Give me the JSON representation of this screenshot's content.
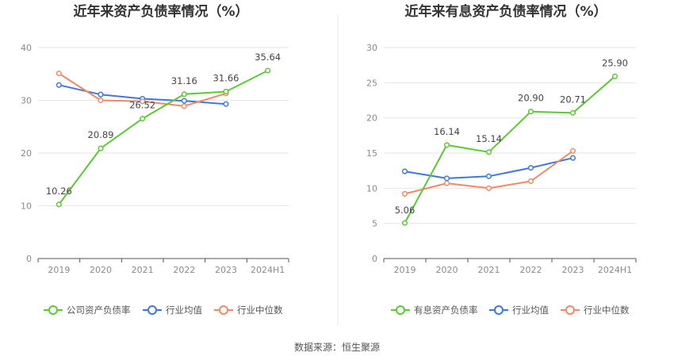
{
  "source": "数据来源：恒生聚源",
  "colors": {
    "company": "#5cc832",
    "avg": "#3f78dc",
    "median": "#f08a64"
  },
  "chart_data": [
    {
      "type": "line",
      "title": "近年来资产负债率情况（%）",
      "categories": [
        "2019",
        "2020",
        "2021",
        "2022",
        "2023",
        "2024H1"
      ],
      "ylim": [
        0,
        40
      ],
      "yticks": [
        0,
        10,
        20,
        30,
        40
      ],
      "grid": true,
      "legend_position": "bottom",
      "series": [
        {
          "name": "公司资产负债率",
          "key": "company",
          "values": [
            10.26,
            20.89,
            26.52,
            31.16,
            31.66,
            35.64
          ],
          "labels": [
            "10.26",
            "20.89",
            "26.52",
            "31.16",
            "31.66",
            "35.64"
          ]
        },
        {
          "name": "行业均值",
          "key": "avg",
          "values": [
            32.9,
            31.1,
            30.3,
            29.9,
            29.3,
            null
          ]
        },
        {
          "name": "行业中位数",
          "key": "median",
          "values": [
            35.1,
            30.0,
            29.8,
            28.9,
            31.3,
            null
          ]
        }
      ]
    },
    {
      "type": "line",
      "title": "近年来有息资产负债率情况（%）",
      "categories": [
        "2019",
        "2020",
        "2021",
        "2022",
        "2023",
        "2024H1"
      ],
      "ylim": [
        0,
        30
      ],
      "yticks": [
        0,
        5,
        10,
        15,
        20,
        25,
        30
      ],
      "grid": true,
      "legend_position": "bottom",
      "series": [
        {
          "name": "有息资产负债率",
          "key": "company",
          "values": [
            5.06,
            16.14,
            15.14,
            20.9,
            20.71,
            25.9
          ],
          "labels": [
            "5.06",
            "16.14",
            "15.14",
            "20.90",
            "20.71",
            "25.90"
          ]
        },
        {
          "name": "行业均值",
          "key": "avg",
          "values": [
            12.4,
            11.4,
            11.7,
            12.9,
            14.3,
            null
          ]
        },
        {
          "name": "行业中位数",
          "key": "median",
          "values": [
            9.2,
            10.7,
            10.0,
            11.0,
            15.3,
            null
          ]
        }
      ]
    }
  ]
}
